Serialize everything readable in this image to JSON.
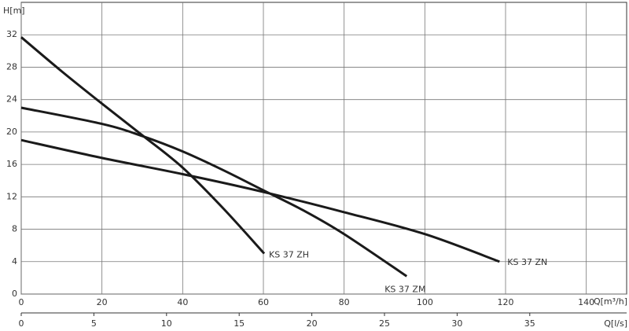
{
  "chart_data": {
    "type": "line",
    "y_label": "H[m]",
    "x_label": "Q[m³/h]",
    "x2_label": "Q[l/s]",
    "xlim": [
      0,
      150
    ],
    "xticks": [
      0,
      20,
      40,
      60,
      80,
      100,
      120,
      140
    ],
    "ylim": [
      0,
      36
    ],
    "yticks": [
      0,
      4,
      8,
      12,
      16,
      20,
      24,
      28,
      32
    ],
    "x2lim": [
      0,
      41.667
    ],
    "x2ticks": [
      0,
      5,
      10,
      15,
      20,
      25,
      30,
      35
    ],
    "grid": true,
    "series": [
      {
        "name": "KS 37 ZH",
        "color": "#1a1a1a",
        "x": [
          0,
          10,
          20,
          30,
          40,
          50,
          60.2
        ],
        "values": [
          31.7,
          27.5,
          23.5,
          19.6,
          15.6,
          10.6,
          5.0
        ]
      },
      {
        "name": "KS 37 ZM",
        "color": "#1a1a1a",
        "x": [
          0,
          20,
          30,
          40,
          50,
          60,
          70,
          80,
          95.5
        ],
        "values": [
          23,
          21,
          19.5,
          17.6,
          15.3,
          12.8,
          10.3,
          7.4,
          2.2
        ]
      },
      {
        "name": "KS 37 ZN",
        "color": "#1a1a1a",
        "x": [
          0,
          20,
          40,
          60,
          80,
          100,
          118.5
        ],
        "values": [
          19,
          16.8,
          14.8,
          12.6,
          10.1,
          7.4,
          4.0
        ]
      }
    ]
  }
}
